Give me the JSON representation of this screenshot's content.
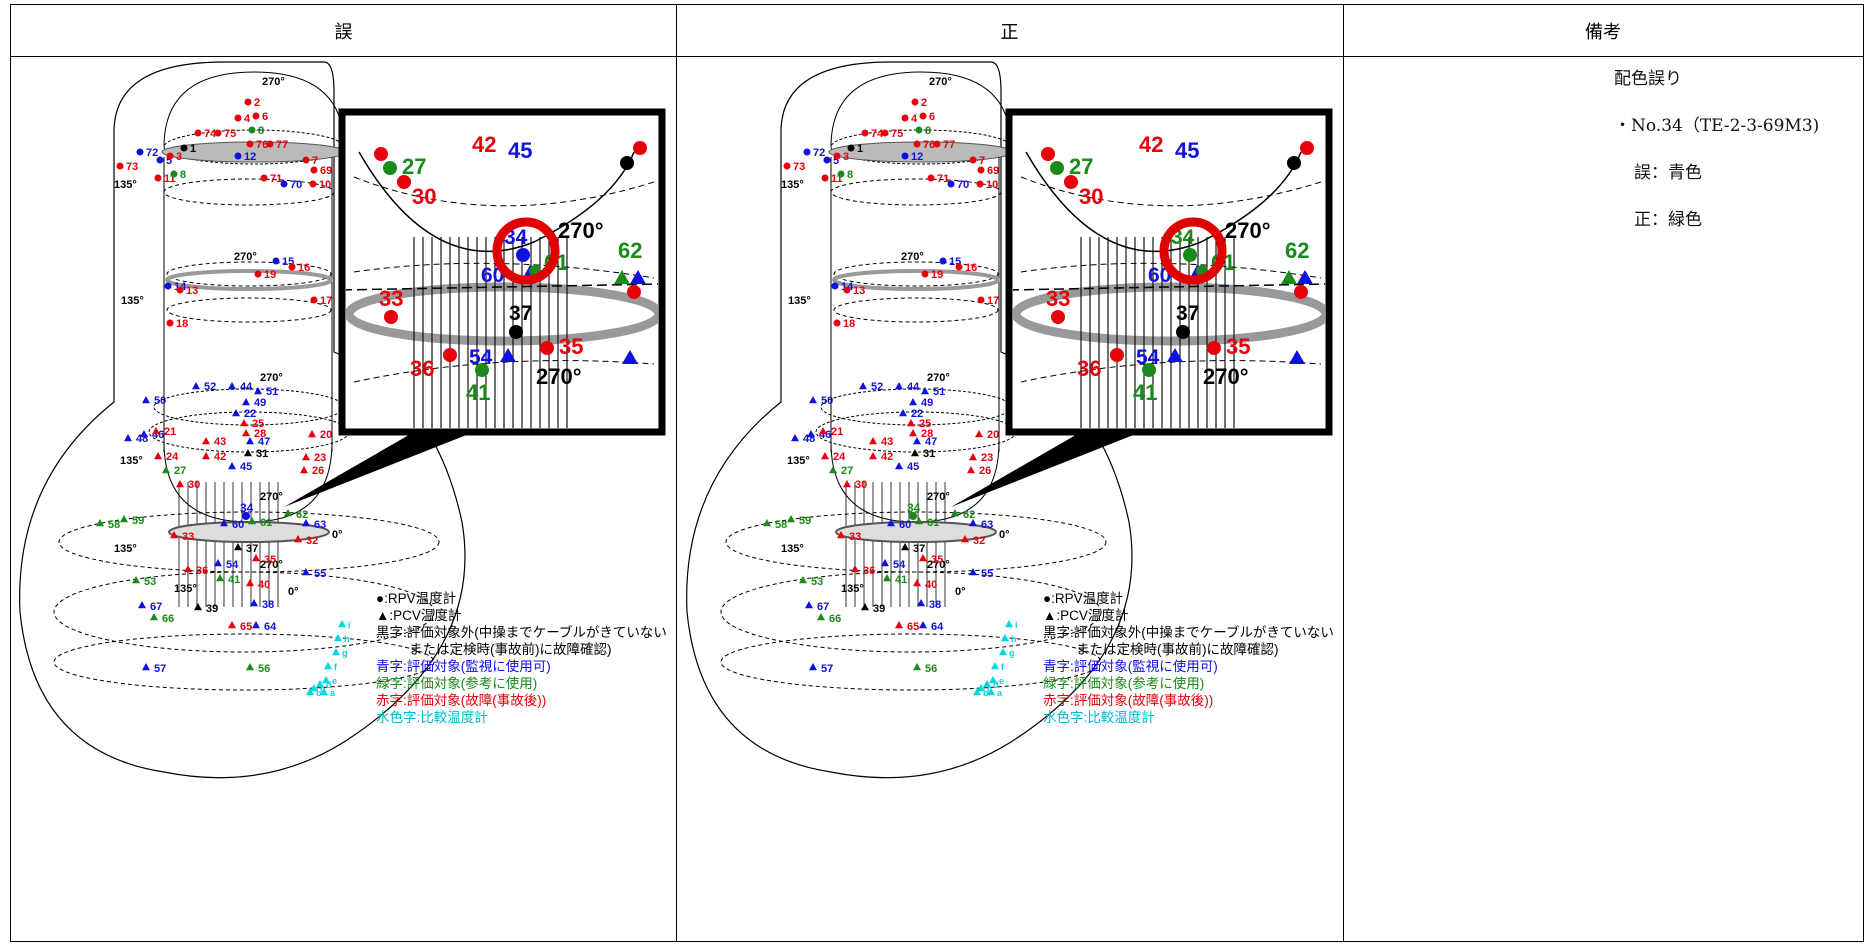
{
  "headers": {
    "wrong": "誤",
    "right": "正",
    "remarks": "備考"
  },
  "remarks": {
    "title": "配色誤り",
    "item": "・No.34（TE-2-3-69M3)",
    "wrong": "誤：青色",
    "right": "正：緑色"
  },
  "legend": {
    "rpv": "●:RPV温度計",
    "pcv": "▲:PCV温度計",
    "black1": "黒字:評価対象外(中操までケーブルがきていない",
    "black2": "または定検時(事故前)に故障確認)",
    "blue": "青字:評価対象(監視に使用可)",
    "green": "緑字:評価対象(参考に使用)",
    "red": "赤字:評価対象(故障(事故後))",
    "cyan": "水色字:比較温度計"
  },
  "colors": {
    "red": "#e8000b",
    "blue": "#1010e0",
    "green": "#1a8a1a",
    "cyan": "#00d8e0",
    "black": "#000000",
    "highlight": "#e00000"
  },
  "zoom": {
    "labels": [
      "27",
      "42",
      "45",
      "30",
      "34",
      "270°",
      "62",
      "61",
      "60",
      "33",
      "37",
      "54",
      "35",
      "36",
      "41",
      "270°"
    ],
    "wrong_34_color": "blue",
    "right_34_color": "green"
  },
  "diagram_labels": {
    "angles": [
      "270°",
      "0°",
      "135°"
    ],
    "numbers_top": [
      "2",
      "4",
      "6",
      "8",
      "74",
      "75",
      "76",
      "77",
      "72",
      "73",
      "5",
      "3",
      "1",
      "7",
      "69",
      "11",
      "8",
      "12",
      "71",
      "70",
      "10"
    ],
    "numbers_mid": [
      "270°",
      "15",
      "16",
      "19",
      "14",
      "13",
      "17",
      "18"
    ],
    "numbers_low": [
      "52",
      "44",
      "51",
      "49",
      "50",
      "22",
      "48",
      "46",
      "21",
      "25",
      "28",
      "43",
      "47",
      "20",
      "42",
      "31",
      "45",
      "24",
      "23",
      "26",
      "27",
      "30"
    ],
    "numbers_base": [
      "34",
      "58",
      "59",
      "60",
      "61",
      "62",
      "63",
      "33",
      "32",
      "37",
      "36",
      "54",
      "35",
      "55",
      "53",
      "41",
      "40",
      "67",
      "39",
      "66",
      "38",
      "65",
      "64",
      "57",
      "56"
    ],
    "cyan_letters": [
      "i",
      "h",
      "g",
      "f",
      "e",
      "d",
      "c",
      "b",
      "a"
    ]
  }
}
